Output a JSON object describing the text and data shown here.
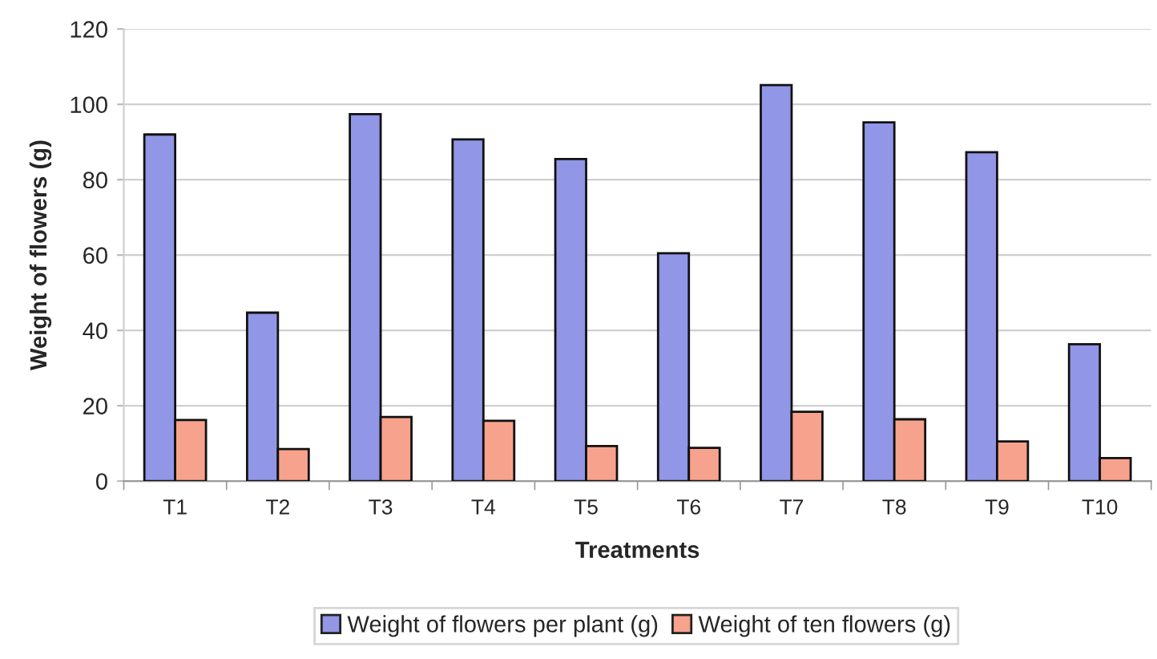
{
  "chart_data": {
    "type": "bar",
    "xlabel": "Treatments",
    "ylabel": "Weight of flowers (g)",
    "categories": [
      "T1",
      "T2",
      "T3",
      "T4",
      "T5",
      "T6",
      "T7",
      "T8",
      "T9",
      "T10"
    ],
    "series": [
      {
        "name": "Weight of flowers per plant (g)",
        "color": "#9196e6",
        "values": [
          92,
          44.7,
          97.4,
          90.7,
          85.5,
          60.5,
          105.1,
          95.2,
          87.3,
          36.3
        ]
      },
      {
        "name": "Weight of ten flowers (g)",
        "color": "#f7a28c",
        "values": [
          16.2,
          8.5,
          17,
          16,
          9.3,
          8.8,
          18.4,
          16.4,
          10.5,
          6.1
        ]
      }
    ],
    "ylim": [
      0,
      120
    ],
    "yticks": [
      0,
      20,
      40,
      60,
      80,
      100,
      120
    ],
    "grid": "y",
    "legend": "bottom"
  }
}
